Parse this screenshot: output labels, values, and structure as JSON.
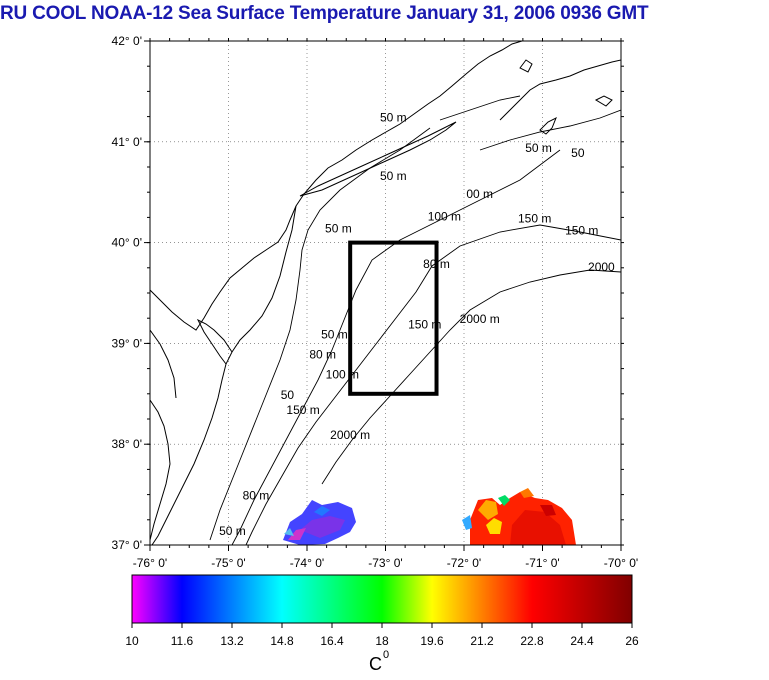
{
  "title": "RU COOL  NOAA-12 Sea Surface Temperature January 31, 2006 0936 GMT",
  "map": {
    "lon_range": [
      -76,
      -70
    ],
    "lat_range": [
      37,
      42
    ],
    "lat_ticks": [
      {
        "value": 42,
        "label": "42° 0'"
      },
      {
        "value": 41,
        "label": "41° 0'"
      },
      {
        "value": 40,
        "label": "40° 0'"
      },
      {
        "value": 39,
        "label": "39° 0'"
      },
      {
        "value": 38,
        "label": "38° 0'"
      },
      {
        "value": 37,
        "label": "37° 0'"
      }
    ],
    "lon_ticks": [
      {
        "value": -76,
        "label": "-76° 0'"
      },
      {
        "value": -75,
        "label": "-75° 0'"
      },
      {
        "value": -74,
        "label": "-74° 0'"
      },
      {
        "value": -73,
        "label": "-73° 0'"
      },
      {
        "value": -72,
        "label": "-72° 0'"
      },
      {
        "value": -71,
        "label": "-71° 0'"
      },
      {
        "value": -70,
        "label": "-70° 0'"
      }
    ],
    "grid": "dotted",
    "study_box": {
      "lon_min": -73.45,
      "lon_max": -72.35,
      "lat_min": 38.5,
      "lat_max": 40.0
    },
    "contour_labels": [
      {
        "text": "50 m",
        "lon": -72.9,
        "lat": 41.2
      },
      {
        "text": "50 m",
        "lon": -72.9,
        "lat": 40.62
      },
      {
        "text": "50 m",
        "lon": -73.6,
        "lat": 40.1
      },
      {
        "text": "00 m",
        "lon": -71.8,
        "lat": 40.44
      },
      {
        "text": "100 m",
        "lon": -72.25,
        "lat": 40.22
      },
      {
        "text": "150 m",
        "lon": -71.1,
        "lat": 40.2
      },
      {
        "text": "150 m",
        "lon": -70.5,
        "lat": 40.08
      },
      {
        "text": "2000",
        "lon": -70.25,
        "lat": 39.72
      },
      {
        "text": "80 m",
        "lon": -72.35,
        "lat": 39.75
      },
      {
        "text": "150 m",
        "lon": -72.5,
        "lat": 39.15
      },
      {
        "text": "2000 m",
        "lon": -71.8,
        "lat": 39.2
      },
      {
        "text": "50 m",
        "lon": -73.65,
        "lat": 39.05
      },
      {
        "text": "80 m",
        "lon": -73.8,
        "lat": 38.85
      },
      {
        "text": "100 m",
        "lon": -73.55,
        "lat": 38.65
      },
      {
        "text": "150 m",
        "lon": -74.05,
        "lat": 38.3
      },
      {
        "text": "2000 m",
        "lon": -73.45,
        "lat": 38.05
      },
      {
        "text": "50",
        "lon": -74.25,
        "lat": 38.45
      },
      {
        "text": "80 m",
        "lon": -74.65,
        "lat": 37.45
      },
      {
        "text": "50 m",
        "lon": -74.95,
        "lat": 37.1
      },
      {
        "text": "50 m",
        "lon": -71.05,
        "lat": 40.9
      },
      {
        "text": "50",
        "lon": -70.55,
        "lat": 40.85
      }
    ]
  },
  "colorbar": {
    "unit": "C",
    "unit_superscript": "0",
    "min": 10,
    "max": 26,
    "ticks": [
      "10",
      "11.6",
      "13.2",
      "14.8",
      "16.4",
      "18",
      "19.6",
      "21.2",
      "22.8",
      "24.4",
      "26"
    ],
    "stops": [
      {
        "value": 10,
        "color": "#ff00ff"
      },
      {
        "value": 11.6,
        "color": "#0000ff"
      },
      {
        "value": 14.8,
        "color": "#00ffff"
      },
      {
        "value": 18,
        "color": "#00ff00"
      },
      {
        "value": 19.6,
        "color": "#ffff00"
      },
      {
        "value": 21.2,
        "color": "#ff8000"
      },
      {
        "value": 22.8,
        "color": "#ff0000"
      },
      {
        "value": 26,
        "color": "#800000"
      }
    ]
  },
  "colors": {
    "title": "#1a1ab0",
    "land_coast": "#000000",
    "contours": "#000000",
    "study_box": "#000000"
  }
}
